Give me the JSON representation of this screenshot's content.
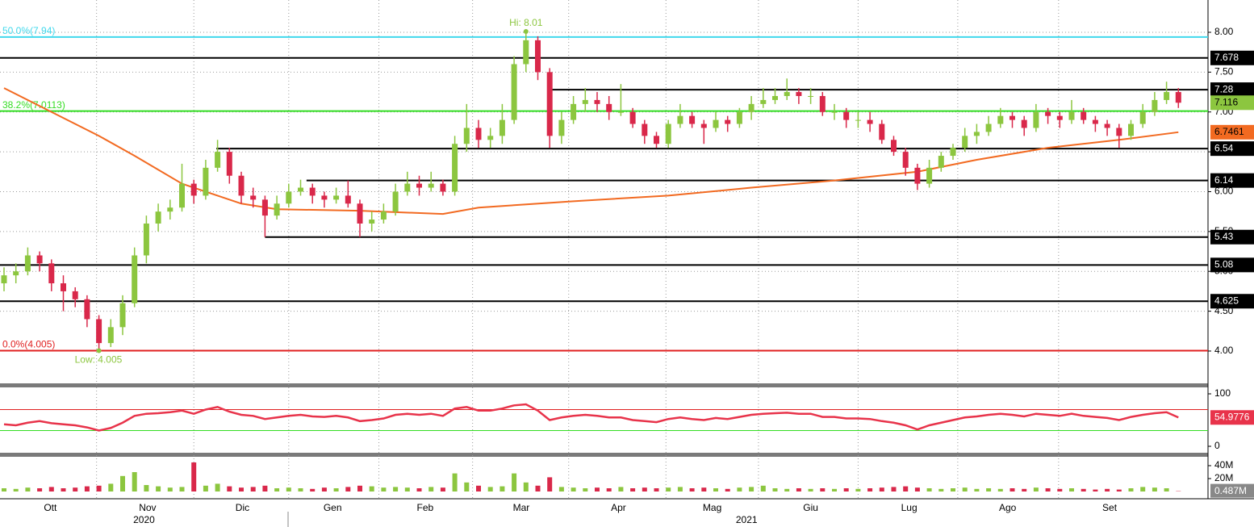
{
  "chart_data": {
    "type": "candlestick",
    "up_color": "#8cc63f",
    "down_color": "#d9284a",
    "wick_color": "#555555",
    "ylim": [
      3.625,
      8.405
    ],
    "yticks": [
      {
        "value": 8,
        "label": "8.00"
      },
      {
        "value": 7.5,
        "label": "7.50"
      },
      {
        "value": 7,
        "label": "7.00"
      },
      {
        "value": 6.5,
        "label": "6.50"
      },
      {
        "value": 6,
        "label": "6.00"
      },
      {
        "value": 5.5,
        "label": "5.50"
      },
      {
        "value": 5,
        "label": "5.00"
      },
      {
        "value": 4.5,
        "label": "4.50"
      },
      {
        "value": 4,
        "label": "4.00"
      }
    ],
    "grid": true,
    "xticks": [
      {
        "value": 3.9,
        "label": "Ott"
      },
      {
        "value": 12.1,
        "label": "Nov"
      },
      {
        "value": 20.1,
        "label": "Dic"
      },
      {
        "value": 27.7,
        "label": "Gen"
      },
      {
        "value": 35.5,
        "label": "Feb"
      },
      {
        "value": 43.6,
        "label": "Mar"
      },
      {
        "value": 51.8,
        "label": "Apr"
      },
      {
        "value": 59.7,
        "label": "Mag"
      },
      {
        "value": 68,
        "label": "Giu"
      },
      {
        "value": 76.3,
        "label": "Lug"
      },
      {
        "value": 84.6,
        "label": "Ago"
      },
      {
        "value": 93.2,
        "label": "Set"
      }
    ],
    "xgrid": [
      7.8,
      16,
      24,
      31.6,
      39.5,
      47.6,
      55.8,
      63.6,
      72,
      80.4,
      88.9
    ],
    "years": [
      {
        "value": 11.8,
        "label": "2020"
      },
      {
        "value": 62.6,
        "label": "2021"
      }
    ],
    "candles": [
      [
        4.85,
        5.05,
        4.75,
        4.95
      ],
      [
        4.95,
        5.1,
        4.85,
        5.0
      ],
      [
        5.0,
        5.3,
        4.95,
        5.2
      ],
      [
        5.2,
        5.25,
        5.0,
        5.1
      ],
      [
        5.1,
        5.15,
        4.75,
        4.85
      ],
      [
        4.85,
        4.95,
        4.5,
        4.75
      ],
      [
        4.75,
        4.8,
        4.55,
        4.65
      ],
      [
        4.65,
        4.7,
        4.3,
        4.4
      ],
      [
        4.4,
        4.45,
        4.005,
        4.1
      ],
      [
        4.1,
        4.4,
        4.05,
        4.3
      ],
      [
        4.3,
        4.7,
        4.2,
        4.6
      ],
      [
        4.6,
        5.3,
        4.55,
        5.2
      ],
      [
        5.2,
        5.7,
        5.1,
        5.6
      ],
      [
        5.6,
        5.85,
        5.5,
        5.75
      ],
      [
        5.75,
        5.9,
        5.65,
        5.8
      ],
      [
        5.8,
        6.35,
        5.75,
        6.1
      ],
      [
        6.1,
        6.15,
        5.85,
        5.95
      ],
      [
        5.95,
        6.4,
        5.9,
        6.3
      ],
      [
        6.3,
        6.65,
        6.25,
        6.5
      ],
      [
        6.5,
        6.55,
        6.1,
        6.2
      ],
      [
        6.2,
        6.25,
        5.85,
        5.95
      ],
      [
        5.95,
        6.05,
        5.8,
        5.9
      ],
      [
        5.9,
        5.95,
        5.43,
        5.7
      ],
      [
        5.7,
        5.95,
        5.65,
        5.85
      ],
      [
        5.85,
        6.1,
        5.8,
        6.0
      ],
      [
        6.0,
        6.15,
        5.95,
        6.05
      ],
      [
        6.05,
        6.1,
        5.85,
        5.95
      ],
      [
        5.95,
        6.0,
        5.8,
        5.9
      ],
      [
        5.9,
        6.05,
        5.85,
        5.95
      ],
      [
        5.95,
        6.14,
        5.8,
        5.85
      ],
      [
        5.85,
        5.9,
        5.43,
        5.6
      ],
      [
        5.6,
        5.75,
        5.5,
        5.65
      ],
      [
        5.65,
        5.85,
        5.6,
        5.75
      ],
      [
        5.75,
        6.1,
        5.7,
        6.0
      ],
      [
        6.0,
        6.25,
        5.95,
        6.1
      ],
      [
        6.1,
        6.2,
        5.95,
        6.05
      ],
      [
        6.05,
        6.25,
        6.0,
        6.1
      ],
      [
        6.1,
        6.15,
        5.95,
        6.0
      ],
      [
        6.0,
        6.7,
        5.95,
        6.6
      ],
      [
        6.6,
        7.1,
        6.5,
        6.8
      ],
      [
        6.8,
        6.9,
        6.55,
        6.65
      ],
      [
        6.65,
        6.8,
        6.55,
        6.7
      ],
      [
        6.7,
        7.1,
        6.6,
        6.9
      ],
      [
        6.9,
        7.7,
        6.85,
        7.6
      ],
      [
        7.6,
        8.01,
        7.5,
        7.9
      ],
      [
        7.9,
        7.95,
        7.4,
        7.5
      ],
      [
        7.5,
        7.55,
        6.55,
        6.7
      ],
      [
        6.7,
        7.0,
        6.6,
        6.9
      ],
      [
        6.9,
        7.2,
        6.85,
        7.1
      ],
      [
        7.1,
        7.3,
        7.0,
        7.15
      ],
      [
        7.15,
        7.25,
        7.0,
        7.1
      ],
      [
        7.1,
        7.2,
        6.9,
        7.0
      ],
      [
        7.0,
        7.35,
        6.95,
        7.0
      ],
      [
        7.0,
        7.05,
        6.8,
        6.85
      ],
      [
        6.85,
        6.9,
        6.6,
        6.7
      ],
      [
        6.7,
        6.75,
        6.55,
        6.6
      ],
      [
        6.6,
        6.9,
        6.55,
        6.85
      ],
      [
        6.85,
        7.1,
        6.8,
        6.95
      ],
      [
        6.95,
        7.0,
        6.8,
        6.85
      ],
      [
        6.85,
        6.9,
        6.6,
        6.8
      ],
      [
        6.8,
        7.0,
        6.75,
        6.9
      ],
      [
        6.9,
        6.95,
        6.75,
        6.85
      ],
      [
        6.85,
        7.05,
        6.8,
        7.0
      ],
      [
        7.0,
        7.2,
        6.9,
        7.1
      ],
      [
        7.1,
        7.3,
        7.05,
        7.15
      ],
      [
        7.15,
        7.3,
        7.1,
        7.2
      ],
      [
        7.2,
        7.42,
        7.15,
        7.25
      ],
      [
        7.25,
        7.3,
        7.1,
        7.2
      ],
      [
        7.2,
        7.3,
        7.1,
        7.2
      ],
      [
        7.2,
        7.25,
        6.95,
        7.0
      ],
      [
        7.0,
        7.1,
        6.9,
        7.0
      ],
      [
        7.0,
        7.05,
        6.8,
        6.9
      ],
      [
        6.9,
        7.0,
        6.8,
        6.9
      ],
      [
        6.9,
        7.0,
        6.75,
        6.85
      ],
      [
        6.85,
        6.9,
        6.6,
        6.65
      ],
      [
        6.65,
        6.7,
        6.45,
        6.5
      ],
      [
        6.5,
        6.55,
        6.2,
        6.3
      ],
      [
        6.3,
        6.35,
        6.02,
        6.1
      ],
      [
        6.1,
        6.4,
        6.05,
        6.3
      ],
      [
        6.3,
        6.5,
        6.25,
        6.45
      ],
      [
        6.45,
        6.6,
        6.4,
        6.55
      ],
      [
        6.55,
        6.8,
        6.5,
        6.7
      ],
      [
        6.7,
        6.85,
        6.6,
        6.75
      ],
      [
        6.75,
        6.95,
        6.7,
        6.85
      ],
      [
        6.85,
        7.05,
        6.8,
        6.95
      ],
      [
        6.95,
        7.0,
        6.8,
        6.9
      ],
      [
        6.9,
        6.95,
        6.7,
        6.8
      ],
      [
        6.8,
        7.1,
        6.75,
        7.0
      ],
      [
        7.0,
        7.05,
        6.85,
        6.95
      ],
      [
        6.95,
        7.0,
        6.8,
        6.9
      ],
      [
        6.9,
        7.15,
        6.85,
        7.0
      ],
      [
        7.0,
        7.05,
        6.85,
        6.9
      ],
      [
        6.9,
        6.95,
        6.75,
        6.85
      ],
      [
        6.85,
        6.9,
        6.7,
        6.8
      ],
      [
        6.8,
        6.85,
        6.55,
        6.7
      ],
      [
        6.7,
        6.9,
        6.65,
        6.85
      ],
      [
        6.85,
        7.1,
        6.8,
        7.0
      ],
      [
        7.0,
        7.25,
        6.95,
        7.15
      ],
      [
        7.15,
        7.38,
        7.1,
        7.25
      ],
      [
        7.25,
        7.3,
        7.05,
        7.116
      ]
    ],
    "last_color": "#8cc63f",
    "ma": {
      "color": "#f26a21",
      "x": [
        0,
        4,
        8,
        11,
        15,
        20,
        23,
        30,
        37,
        40,
        48,
        56,
        63,
        70,
        77,
        82,
        88,
        94,
        99
      ],
      "values": [
        7.3,
        7.0,
        6.7,
        6.45,
        6.1,
        5.85,
        5.78,
        5.76,
        5.72,
        5.8,
        5.88,
        5.95,
        6.05,
        6.14,
        6.25,
        6.4,
        6.55,
        6.65,
        6.7461
      ]
    },
    "levels": [
      {
        "value": 7.94,
        "color": "#40d8ec",
        "label": "50.0%(7.94)"
      },
      {
        "value": 7.678,
        "color": "#000000",
        "box": true
      },
      {
        "value": 7.28,
        "color": "#000000",
        "box": true,
        "from": 45.8
      },
      {
        "value": 7.0113,
        "color": "#33dd22",
        "label": "38.2%(7.0113)"
      },
      {
        "value": 6.54,
        "color": "#000000",
        "box": true,
        "from": 17.9
      },
      {
        "value": 6.14,
        "color": "#000000",
        "box": true,
        "from": 25.5
      },
      {
        "value": 5.43,
        "color": "#000000",
        "box": true,
        "from": 22
      },
      {
        "value": 5.08,
        "color": "#000000",
        "box": true
      },
      {
        "value": 4.625,
        "color": "#000000",
        "box": true
      },
      {
        "value": 4.005,
        "color": "#e02020",
        "label": "0.0%(4.005)"
      }
    ],
    "annotations": [
      {
        "text": "Hi: 8.01",
        "at": 44
      },
      {
        "text": "Low: 4.005",
        "at": 8
      }
    ],
    "annotation_color": "#8cc63f",
    "rsi": {
      "color": "#e8334a",
      "ylim": [
        0,
        100
      ],
      "yticks": [
        100,
        0
      ],
      "upper": 70,
      "lower": 30,
      "upper_color": "#e02020",
      "lower_color": "#33dd22",
      "values": [
        42,
        40,
        45,
        48,
        44,
        42,
        40,
        36,
        30,
        35,
        45,
        58,
        62,
        63,
        65,
        68,
        62,
        70,
        75,
        66,
        60,
        58,
        52,
        55,
        58,
        60,
        57,
        56,
        58,
        55,
        48,
        50,
        53,
        60,
        62,
        60,
        62,
        58,
        72,
        75,
        68,
        68,
        72,
        78,
        80,
        68,
        50,
        55,
        58,
        60,
        58,
        55,
        55,
        50,
        48,
        46,
        52,
        55,
        52,
        50,
        54,
        52,
        56,
        60,
        62,
        63,
        64,
        62,
        62,
        56,
        56,
        53,
        53,
        52,
        48,
        45,
        40,
        32,
        40,
        45,
        50,
        55,
        57,
        60,
        62,
        60,
        57,
        62,
        60,
        58,
        62,
        58,
        56,
        54,
        50,
        56,
        60,
        63,
        65,
        54.9776
      ]
    },
    "volume": {
      "ylim": [
        0,
        52.5
      ],
      "yticks": [
        {
          "value": 40,
          "label": "40M"
        },
        {
          "value": 20,
          "label": "20M"
        }
      ],
      "values": [
        5,
        4,
        6,
        5,
        7,
        5,
        6,
        8,
        9,
        12,
        24,
        30,
        10,
        8,
        6,
        7,
        45,
        9,
        12,
        8,
        6,
        7,
        9,
        5,
        6,
        5,
        4,
        6,
        5,
        7,
        9,
        8,
        6,
        7,
        6,
        5,
        7,
        6,
        28,
        14,
        9,
        7,
        8,
        28,
        14,
        9,
        22,
        7,
        6,
        5,
        6,
        5,
        7,
        5,
        6,
        5,
        6,
        7,
        5,
        6,
        5,
        4,
        6,
        7,
        9,
        5,
        4,
        5,
        4,
        5,
        4,
        5,
        4,
        5,
        6,
        7,
        8,
        6,
        5,
        4,
        5,
        6,
        4,
        5,
        4,
        5,
        4,
        6,
        5,
        4,
        5,
        4,
        3,
        4,
        3,
        5,
        7,
        6,
        5,
        0.487
      ],
      "value_labels": {
        "99": "0.487M"
      }
    }
  }
}
